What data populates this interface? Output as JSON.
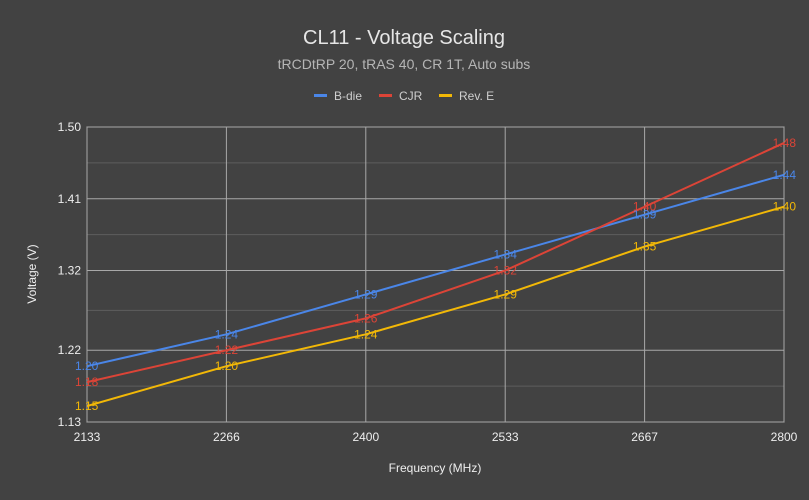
{
  "chart_data": {
    "type": "line",
    "title": "CL11 - Voltage Scaling",
    "subtitle": "tRCDtRP 20, tRAS 40, CR 1T, Auto subs",
    "xlabel": "Frequency (MHz)",
    "ylabel": "Voltage (V)",
    "x": [
      2133,
      2266,
      2400,
      2533,
      2667,
      2800
    ],
    "x_tick_labels": [
      "2133",
      "2266",
      "2400",
      "2533",
      "2667",
      "2800"
    ],
    "ylim": [
      1.13,
      1.5
    ],
    "y_ticks": [
      1.13,
      1.22,
      1.32,
      1.41,
      1.5
    ],
    "y_tick_labels": [
      "1.13",
      "1.22",
      "1.32",
      "1.41",
      "1.50"
    ],
    "grid": true,
    "legend_position": "top-center",
    "series": [
      {
        "name": "B-die",
        "color": "#4a86e8",
        "values": [
          1.2,
          1.24,
          1.29,
          1.34,
          1.39,
          1.44
        ],
        "labels": [
          "1.20",
          "1.24",
          "1.29",
          "1.34",
          "1.39",
          "1.44"
        ]
      },
      {
        "name": "CJR",
        "color": "#dc4437",
        "values": [
          1.18,
          1.22,
          1.26,
          1.32,
          1.4,
          1.48
        ],
        "labels": [
          "1.18",
          "1.22",
          "1.26",
          "1.32",
          "1.40",
          "1.48"
        ]
      },
      {
        "name": "Rev. E",
        "color": "#f2b807",
        "values": [
          1.15,
          1.2,
          1.24,
          1.29,
          1.35,
          1.4
        ],
        "labels": [
          "1.15",
          "1.20",
          "1.24",
          "1.29",
          "1.35",
          "1.40"
        ]
      }
    ]
  }
}
